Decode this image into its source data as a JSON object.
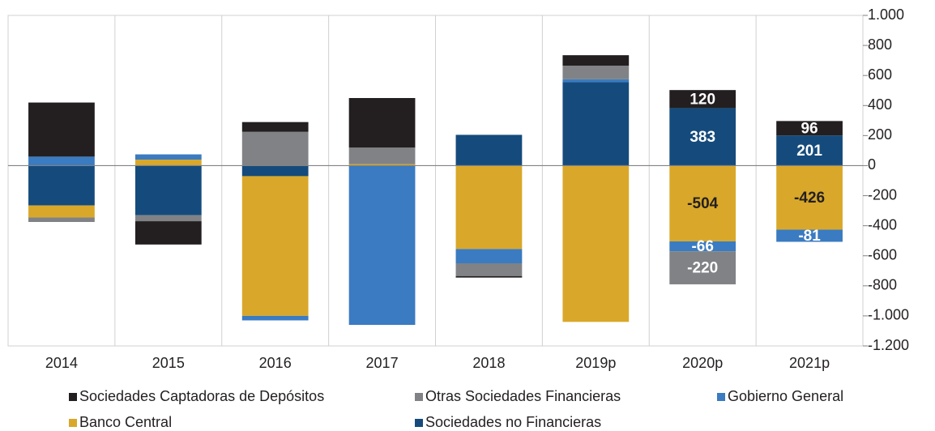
{
  "chart_data": {
    "type": "stacked_bar",
    "categories": [
      "2014",
      "2015",
      "2016",
      "2017",
      "2018",
      "2019p",
      "2020p",
      "2021p"
    ],
    "series": [
      {
        "name": "Sociedades no Financieras",
        "color": "#154b7c",
        "label_color": "#ffffff",
        "values": [
          -265,
          -330,
          -70,
          0,
          205,
          555,
          383,
          201
        ],
        "value_labels": [
          null,
          null,
          null,
          null,
          null,
          null,
          "383",
          "201"
        ]
      },
      {
        "name": "Banco Central",
        "color": "#d9a82a",
        "label_color": "#231f20",
        "values": [
          -80,
          40,
          -930,
          10,
          -555,
          -1040,
          -504,
          -426
        ],
        "value_labels": [
          null,
          null,
          null,
          null,
          null,
          null,
          "-504",
          "-426"
        ]
      },
      {
        "name": "Gobierno General",
        "color": "#3a7bc1",
        "label_color": "#ffffff",
        "values": [
          60,
          35,
          -30,
          -1060,
          -95,
          20,
          -66,
          -81
        ],
        "value_labels": [
          null,
          null,
          null,
          null,
          null,
          null,
          "-66",
          "-81"
        ]
      },
      {
        "name": "Otras Sociedades Financieras",
        "color": "#808285",
        "label_color": "#ffffff",
        "values": [
          -30,
          -40,
          225,
          110,
          -85,
          90,
          -220,
          0
        ],
        "value_labels": [
          null,
          null,
          null,
          null,
          null,
          null,
          "-220",
          null
        ]
      },
      {
        "name": "Sociedades Captadoras de Depósitos",
        "color": "#231f20",
        "label_color": "#ffffff",
        "values": [
          360,
          -155,
          65,
          330,
          -10,
          70,
          120,
          96
        ],
        "value_labels": [
          null,
          null,
          null,
          null,
          null,
          null,
          "120",
          "96"
        ]
      }
    ],
    "legend_order": [
      4,
      3,
      2,
      1,
      0
    ],
    "ylim": [
      -1200,
      1000
    ],
    "yticks": [
      {
        "value": 1000,
        "label": "1.000"
      },
      800,
      600,
      400,
      200,
      0,
      -200,
      -400,
      -600,
      -800,
      {
        "value": -1000,
        "label": "-1.000"
      },
      {
        "value": -1200,
        "label": "-1.200"
      }
    ],
    "y_axis_side": "right",
    "grid": "vertical"
  }
}
